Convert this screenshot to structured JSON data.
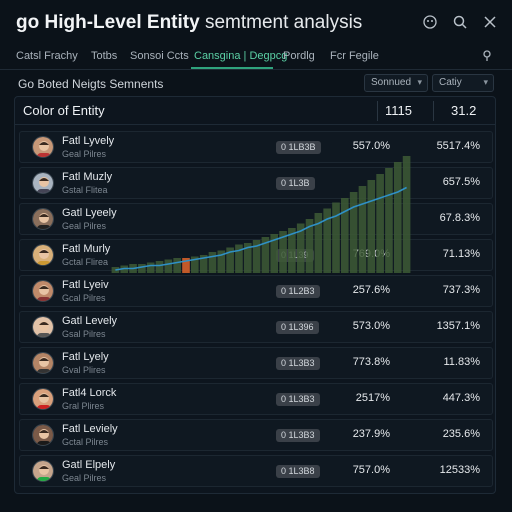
{
  "app": {
    "title_bold": "go High-Level Entity",
    "title_rest": "semtment analysis"
  },
  "window_icons": [
    "grid-icon",
    "search-icon",
    "close-icon"
  ],
  "tabs": [
    {
      "label": "Catsl Frachy",
      "active": false
    },
    {
      "label": "Totbs",
      "active": false
    },
    {
      "label": "Sonsoi Ccts",
      "active": false
    },
    {
      "label": "Cansgina | Degpcg",
      "active": true
    },
    {
      "label": "Pordlg",
      "active": false
    },
    {
      "label": "Fcr Fegile",
      "active": false
    }
  ],
  "section": {
    "title": "Go Boted Neigts Semnents",
    "select1": "Sonnued",
    "select2": "Catiy"
  },
  "table": {
    "label": "Color of Entity",
    "col1": "1115",
    "col2": "31.2"
  },
  "rows": [
    {
      "name": "Fatl Lyvely",
      "sub": "Geal Pilres",
      "badge": "0 1LB3B",
      "v1": "557.0%",
      "v2": "5517.4%"
    },
    {
      "name": "Fatl Muzly",
      "sub": "Gstal Flitea",
      "badge": "0 1L3B",
      "v1": "",
      "v2": "657.5%"
    },
    {
      "name": "Gatl Lyeely",
      "sub": "Geal Pilres",
      "badge": "",
      "v1": "",
      "v2": "67.8.3%"
    },
    {
      "name": "Fatl Murly",
      "sub": "Gctal Flirea",
      "badge": "0 1L39",
      "v1": "769.0%",
      "v2": "71.13%"
    },
    {
      "name": "Fatl Lyeiv",
      "sub": "Gcal Pilres",
      "badge": "0 1L2B3",
      "v1": "257.6%",
      "v2": "737.3%"
    },
    {
      "name": "Gatl Levely",
      "sub": "Gsal Pilres",
      "badge": "0 1L396",
      "v1": "573.0%",
      "v2": "1357.1%"
    },
    {
      "name": "Fatl Lyely",
      "sub": "Gval Plires",
      "badge": "0 1L3B3",
      "v1": "773.8%",
      "v2": "11.83%"
    },
    {
      "name": "Fatl4 Lorck",
      "sub": "Gral Plires",
      "badge": "0 1L3B3",
      "v1": "2517%",
      "v2": "447.3%"
    },
    {
      "name": "Fatl Leviely",
      "sub": "Gctal Pilres",
      "badge": "0 1L3B3",
      "v1": "237.9%",
      "v2": "235.6%"
    },
    {
      "name": "Gatl Elpely",
      "sub": "Geal Pilres",
      "badge": "0 1L3B8",
      "v1": "757.0%",
      "v2": "12533%"
    }
  ],
  "overlay_chart": {
    "bars": [
      4,
      5,
      6,
      6,
      7,
      8,
      9,
      10,
      10,
      11,
      12,
      14,
      15,
      17,
      19,
      20,
      22,
      24,
      26,
      28,
      30,
      33,
      36,
      40,
      43,
      47,
      50,
      54,
      58,
      62,
      66,
      70,
      74,
      78
    ],
    "line": [
      2,
      3,
      3,
      4,
      5,
      5,
      6,
      7,
      8,
      9,
      10,
      11,
      12,
      14,
      15,
      17,
      18,
      20,
      22,
      24,
      26,
      28,
      31,
      33,
      36,
      38,
      41,
      44,
      46,
      48,
      50,
      52,
      54,
      57
    ],
    "highlight_index": 8,
    "bar_color": "#3d5a35",
    "highlight_color": "#e0652a",
    "line_color": "#2f90c6"
  },
  "colors": {
    "accent": "#5bd0a5",
    "background": "#0b1219"
  }
}
